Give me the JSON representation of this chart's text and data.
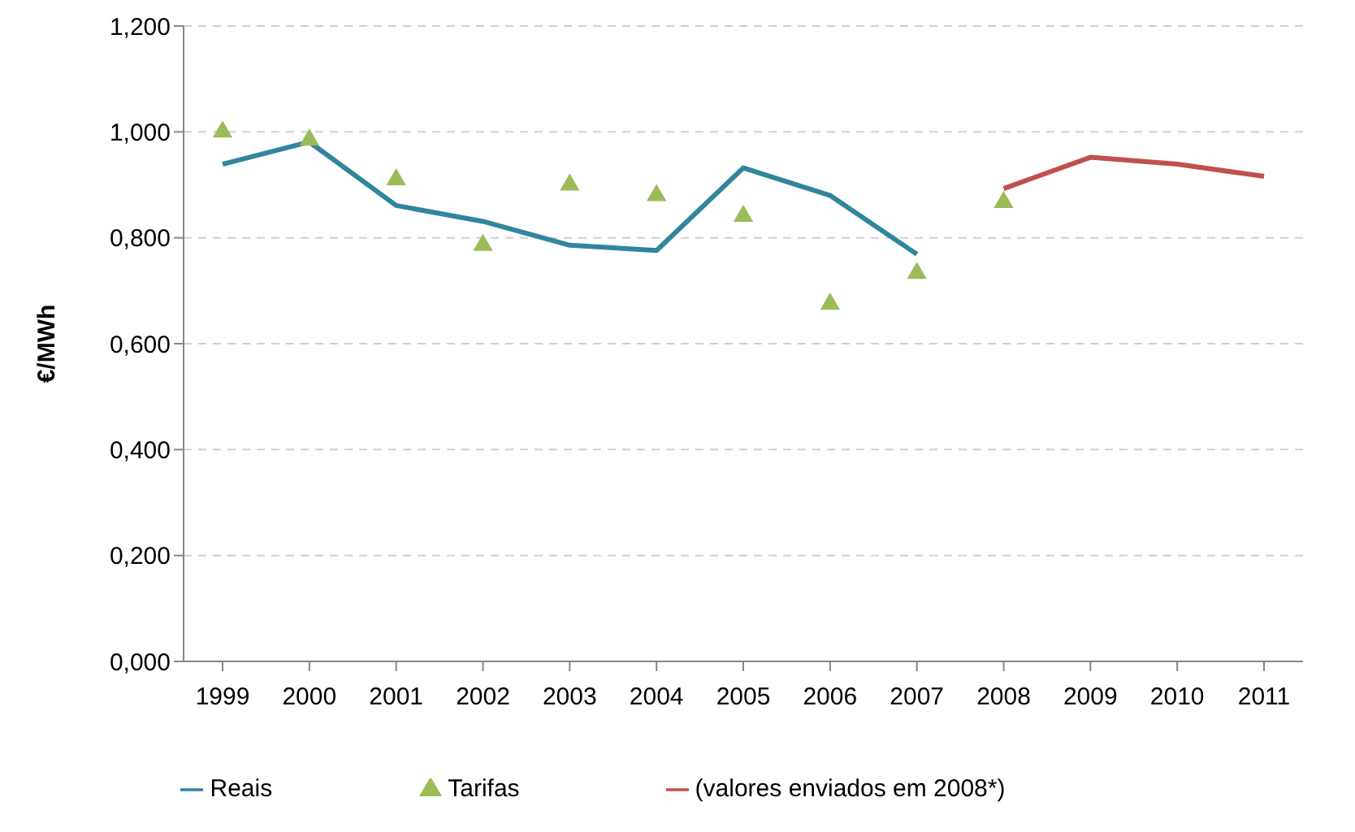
{
  "chart_data": {
    "type": "line",
    "ylabel": "€/MWh",
    "categories": [
      "1999",
      "2000",
      "2001",
      "2002",
      "2003",
      "2004",
      "2005",
      "2006",
      "2007",
      "2008",
      "2009",
      "2010",
      "2011"
    ],
    "series": [
      {
        "name": "Reais",
        "color": "#31859c",
        "values": [
          0.939,
          0.981,
          0.861,
          0.831,
          0.786,
          0.776,
          0.932,
          0.88,
          0.769,
          null,
          null,
          null,
          null
        ]
      },
      {
        "name": "Tarifas",
        "type": "scatter",
        "marker": "triangle",
        "color": "#9bbb59",
        "values": [
          1.0,
          0.985,
          0.91,
          0.786,
          0.9,
          0.88,
          0.841,
          0.675,
          0.733,
          0.867,
          null,
          null,
          null
        ]
      },
      {
        "name": "(valores enviados em 2008*)",
        "color": "#c0504d",
        "values": [
          null,
          null,
          null,
          null,
          null,
          null,
          null,
          null,
          null,
          0.893,
          0.952,
          0.939,
          0.916
        ]
      }
    ],
    "ylim": [
      0,
      1.2
    ],
    "yticks": [
      {
        "value": 0,
        "label": "0,000"
      },
      {
        "value": 0.2,
        "label": "0,200"
      },
      {
        "value": 0.4,
        "label": "0,400"
      },
      {
        "value": 0.6,
        "label": "0,600"
      },
      {
        "value": 0.8,
        "label": "0,800"
      },
      {
        "value": 1.0,
        "label": "1,000"
      },
      {
        "value": 1.2,
        "label": "1,200"
      }
    ],
    "grid": "y",
    "legend": "bottom"
  }
}
